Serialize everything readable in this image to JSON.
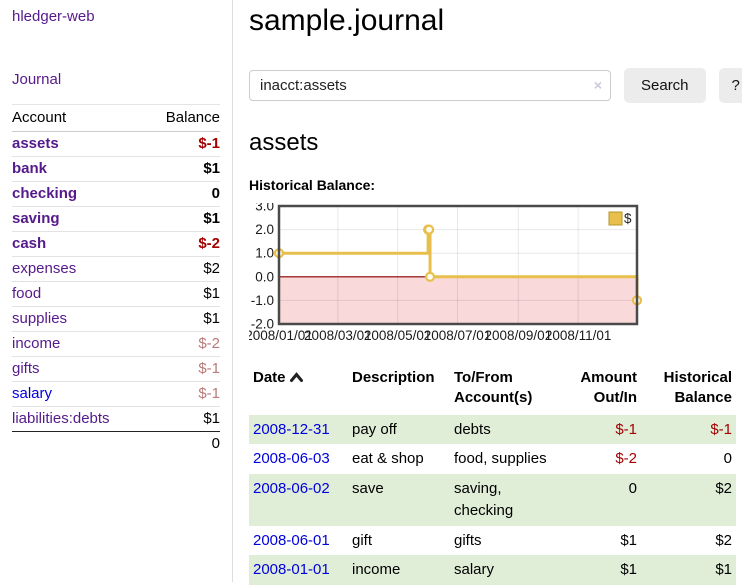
{
  "app": {
    "brand": "hledger-web",
    "nav_journal": "Journal"
  },
  "sidebar": {
    "header": {
      "account": "Account",
      "balance": "Balance"
    },
    "accounts": [
      {
        "name": "assets",
        "balance": "$-1",
        "indent": 1,
        "bold": true,
        "neg": "strong"
      },
      {
        "name": "bank",
        "balance": "$1",
        "indent": 2,
        "bold": true,
        "neg": "none"
      },
      {
        "name": "checking",
        "balance": "0",
        "indent": 3,
        "bold": true,
        "neg": "none"
      },
      {
        "name": "saving",
        "balance": "$1",
        "indent": 3,
        "bold": true,
        "neg": "none"
      },
      {
        "name": "cash",
        "balance": "$-2",
        "indent": 2,
        "bold": true,
        "neg": "strong"
      },
      {
        "name": "expenses",
        "balance": "$2",
        "indent": 1,
        "bold": false,
        "neg": "none"
      },
      {
        "name": "food",
        "balance": "$1",
        "indent": 2,
        "bold": false,
        "neg": "none"
      },
      {
        "name": "supplies",
        "balance": "$1",
        "indent": 2,
        "bold": false,
        "neg": "none"
      },
      {
        "name": "income",
        "balance": "$-2",
        "indent": 1,
        "bold": false,
        "neg": "soft"
      },
      {
        "name": "gifts",
        "balance": "$-1",
        "indent": 2,
        "bold": false,
        "neg": "soft"
      },
      {
        "name": "salary",
        "balance": "$-1",
        "indent": 2,
        "bold": false,
        "neg": "soft",
        "link_color": "blue"
      },
      {
        "name": "liabilities:debts",
        "balance": "$1",
        "indent": 1,
        "bold": false,
        "neg": "none"
      }
    ],
    "total": "0"
  },
  "header": {
    "title": "sample.journal"
  },
  "search": {
    "value": "inacct:assets",
    "clear_label": "×",
    "button_label": "Search",
    "help_label": "?"
  },
  "main": {
    "heading": "assets",
    "chart_title": "Historical Balance:"
  },
  "chart_data": {
    "type": "line",
    "step": true,
    "title": "Historical Balance",
    "xlim": [
      0,
      365
    ],
    "ylim": [
      -2,
      3
    ],
    "y_ticks": [
      {
        "v": 3,
        "label": "3.0"
      },
      {
        "v": 2,
        "label": "2.0"
      },
      {
        "v": 1,
        "label": "1.0"
      },
      {
        "v": 0,
        "label": "0.0"
      },
      {
        "v": -1,
        "label": "-1.0"
      },
      {
        "v": -2,
        "label": "-2.0"
      }
    ],
    "x_ticks": [
      {
        "x": 0,
        "label": "2008/01/01"
      },
      {
        "x": 60,
        "label": "2008/03/01"
      },
      {
        "x": 121,
        "label": "2008/05/01"
      },
      {
        "x": 182,
        "label": "2008/07/01"
      },
      {
        "x": 244,
        "label": "2008/09/01"
      },
      {
        "x": 305,
        "label": "2008/11/01"
      }
    ],
    "series": [
      {
        "name": "$",
        "points": [
          {
            "date": "2008-01-01",
            "x": 0,
            "y": 1
          },
          {
            "date": "2008-06-01",
            "x": 152,
            "y": 2
          },
          {
            "date": "2008-06-02",
            "x": 153,
            "y": 2
          },
          {
            "date": "2008-06-03",
            "x": 154,
            "y": 0
          },
          {
            "date": "2008-12-31",
            "x": 365,
            "y": -1
          }
        ]
      }
    ],
    "legend": {
      "label": "$",
      "position": "top-right"
    },
    "grid": true,
    "colors": {
      "line": "#e8bf4c",
      "marker_fill": "#fffef2",
      "negative_region": "#f9d9da",
      "zero_line": "#8b0000",
      "grid": "#e3e3e3",
      "border": "#4a4a4a",
      "legend_border": "#b5952e"
    }
  },
  "register": {
    "headers": {
      "date": "Date",
      "description": "Description",
      "accounts": "To/From Account(s)",
      "amount": "Amount Out/In",
      "balance": "Historical Balance"
    },
    "rows": [
      {
        "date": "2008-12-31",
        "description": "pay off",
        "accounts": "debts",
        "amount": "$-1",
        "balance": "$-1",
        "amount_neg": true,
        "balance_neg": true
      },
      {
        "date": "2008-06-03",
        "description": "eat & shop",
        "accounts": "food, supplies",
        "amount": "$-2",
        "balance": "0",
        "amount_neg": true,
        "balance_neg": false
      },
      {
        "date": "2008-06-02",
        "description": "save",
        "accounts": "saving, checking",
        "amount": "0",
        "balance": "$2",
        "amount_neg": false,
        "balance_neg": false
      },
      {
        "date": "2008-06-01",
        "description": "gift",
        "accounts": "gifts",
        "amount": "$1",
        "balance": "$2",
        "amount_neg": false,
        "balance_neg": false
      },
      {
        "date": "2008-01-01",
        "description": "income",
        "accounts": "salary",
        "amount": "$1",
        "balance": "$1",
        "amount_neg": false,
        "balance_neg": false
      }
    ]
  },
  "colors": {
    "link_purple": "#551a8b",
    "link_blue": "#0000dd",
    "neg_strong": "#a40000",
    "neg_soft": "#b87a7a",
    "stripe_green": "#e0eed8"
  }
}
